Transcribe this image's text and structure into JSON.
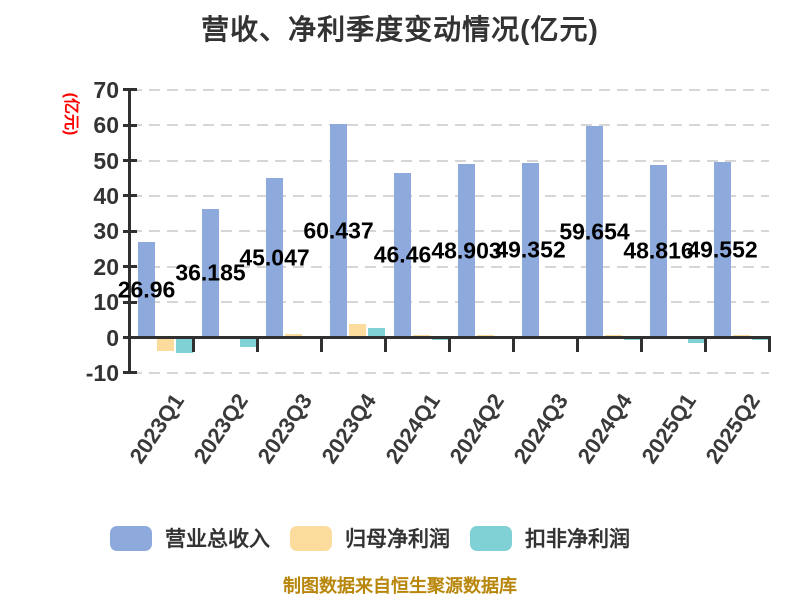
{
  "chart_data": {
    "type": "bar",
    "title": "营收、净利季度变动情况(亿元)",
    "ylabel": "(亿元)",
    "ylabel_color": "#ff0000",
    "ylim": [
      -10,
      70
    ],
    "yticks": [
      70,
      60,
      50,
      40,
      30,
      20,
      10,
      0,
      -10
    ],
    "grid": "horizontal-dashed",
    "grid_color": "#d6d6d6",
    "axis_color": "#303030",
    "legend_position": "bottom",
    "categories": [
      "2023Q1",
      "2023Q2",
      "2023Q3",
      "2023Q4",
      "2024Q1",
      "2024Q2",
      "2024Q3",
      "2024Q4",
      "2025Q1",
      "2025Q2"
    ],
    "series": [
      {
        "key": "total-revenue",
        "name": "营业总收入",
        "color": "#8EA9DB",
        "show_labels": true,
        "values": [
          26.96,
          36.185,
          45.047,
          60.437,
          46.46,
          48.903,
          49.352,
          59.654,
          48.816,
          49.552
        ],
        "labels": [
          "26.96",
          "36.185",
          "45.047",
          "60.437",
          "46.46",
          "48.903",
          "49.352",
          "59.654",
          "48.816",
          "49.552"
        ]
      },
      {
        "key": "net-profit-attributable",
        "name": "归母净利润",
        "color": "#FBDC9C",
        "show_labels": false,
        "values": [
          -3.8,
          0.1,
          0.9,
          3.9,
          0.7,
          0.6,
          0.4,
          0.7,
          -0.5,
          0.6
        ]
      },
      {
        "key": "non-gaap-net-profit",
        "name": "扣非净利润",
        "color": "#7FD1D6",
        "show_labels": false,
        "values": [
          -4.3,
          -2.6,
          0.1,
          2.7,
          -0.8,
          0.1,
          0.5,
          -0.8,
          -1.6,
          -0.8
        ]
      }
    ]
  },
  "footer": {
    "text": "制图数据来自恒生聚源数据库",
    "color": "#b8860b"
  }
}
